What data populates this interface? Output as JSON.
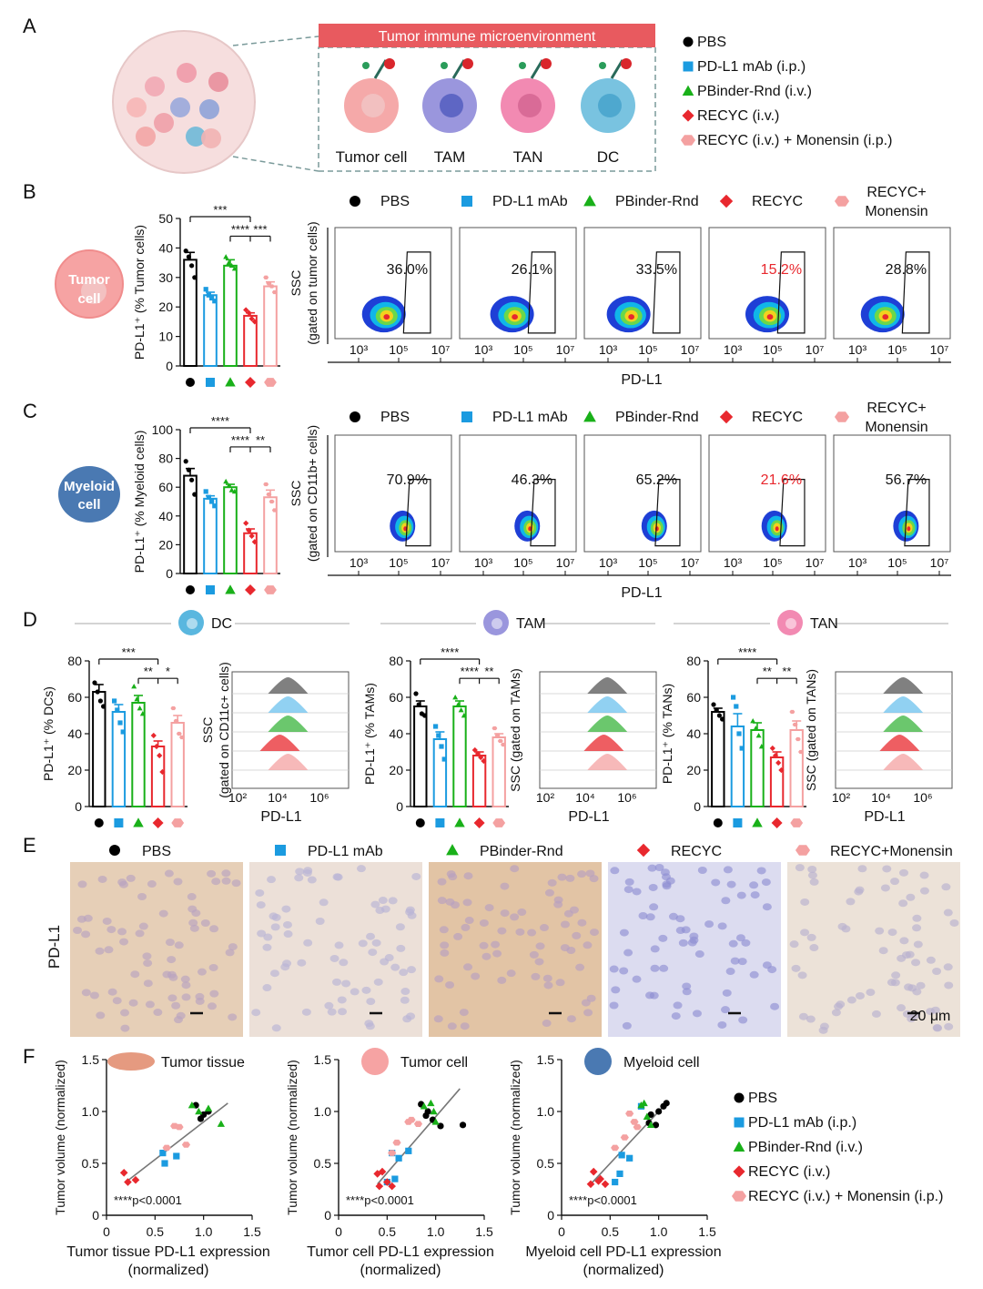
{
  "colors": {
    "pbs": "#000000",
    "mab": "#1b9be0",
    "pbinder": "#19b019",
    "recyc": "#e8282e",
    "mon": "#f4a1a1",
    "banner": "#e85a5f"
  },
  "groups": [
    "PBS",
    "PD-L1 mAb",
    "PBinder-Rnd",
    "RECYC",
    "RECYC+ Monensin"
  ],
  "panelA": {
    "label": "A",
    "banner": "Tumor immune microenvironment",
    "cells": [
      "Tumor cell",
      "TAM",
      "TAN",
      "DC"
    ],
    "legend": [
      "PBS",
      "PD-L1 mAb (i.p.)",
      "PBinder-Rnd (i.v.)",
      "RECYC (i.v.)",
      "RECYC (i.v.) + Monensin (i.p.)"
    ]
  },
  "panelB": {
    "label": "B",
    "cell_icon": "Tumor cell",
    "ylabel": "PD-L1⁺ (% Tumor cells)",
    "yticks": [
      "0",
      "10",
      "20",
      "30",
      "40",
      "50"
    ],
    "sig": [
      "***",
      "****",
      "***"
    ],
    "legend": [
      "PBS",
      "PD-L1 mAb",
      "PBinder-Rnd",
      "RECYC",
      "RECYC+",
      "Monensin"
    ],
    "flow_ylabel1": "SSC",
    "flow_ylabel2": "(gated on tumor cells)",
    "percents": [
      "36.0%",
      "26.1%",
      "33.5%",
      "15.2%",
      "28.8%"
    ],
    "xticks": [
      "10³",
      "10⁵",
      "10⁷"
    ],
    "xlabel": "PD-L1"
  },
  "panelC": {
    "label": "C",
    "cell_icon": "Myeloid cell",
    "ylabel": "PD-L1⁺ (% Myeloid cells)",
    "yticks": [
      "0",
      "20",
      "40",
      "60",
      "80",
      "100"
    ],
    "sig": [
      "****",
      "****",
      "**"
    ],
    "legend": [
      "PBS",
      "PD-L1 mAb",
      "PBinder-Rnd",
      "RECYC",
      "RECYC+",
      "Monensin"
    ],
    "flow_ylabel1": "SSC",
    "flow_ylabel2": "(gated on CD11b+ cells)",
    "percents": [
      "70.9%",
      "46.3%",
      "65.2%",
      "21.6%",
      "56.7%"
    ],
    "xticks": [
      "10³",
      "10⁵",
      "10⁷"
    ],
    "xlabel": "PD-L1"
  },
  "panelD": {
    "label": "D",
    "sections": [
      {
        "title": "DC",
        "ylabel": "PD-L1⁺ (% DCs)",
        "yticks": [
          "0",
          "20",
          "40",
          "60",
          "80"
        ],
        "sig": [
          "***",
          "**",
          "*"
        ],
        "hist_ylabel1": "SSC",
        "hist_ylabel2": "(gated on CD11c+ cells)",
        "hticks": [
          "10²",
          "10⁴",
          "10⁶"
        ],
        "xlabel": "PD-L1"
      },
      {
        "title": "TAM",
        "ylabel": "PD-L1⁺ (% TAMs)",
        "yticks": [
          "0",
          "20",
          "40",
          "60",
          "80"
        ],
        "sig": [
          "****",
          "****",
          "**"
        ],
        "hist_ylabel1": "SSC (gated on TAMs)",
        "hist_ylabel2": "",
        "hticks": [
          "10²",
          "10⁴",
          "10⁶"
        ],
        "xlabel": "PD-L1"
      },
      {
        "title": "TAN",
        "ylabel": "PD-L1⁺ (% TANs)",
        "yticks": [
          "0",
          "20",
          "40",
          "60",
          "80"
        ],
        "sig": [
          "****",
          "**",
          "**"
        ],
        "hist_ylabel1": "SSC (gated on TANs)",
        "hist_ylabel2": "",
        "hticks": [
          "10²",
          "10⁴",
          "10⁶"
        ],
        "xlabel": "PD-L1"
      }
    ]
  },
  "panelE": {
    "label": "E",
    "legend": [
      "PBS",
      "PD-L1 mAb",
      "PBinder-Rnd",
      "RECYC",
      "RECYC+Monensin"
    ],
    "row_label": "PD-L1",
    "scale": "20 μm"
  },
  "panelF": {
    "label": "F",
    "plots": [
      {
        "icon_label": "Tumor tissue",
        "xlabel1": "Tumor tissue PD-L1 expression",
        "xlabel2": "(normalized)"
      },
      {
        "icon_label": "Tumor cell",
        "xlabel1": "Tumor cell PD-L1 expression",
        "xlabel2": "(normalized)"
      },
      {
        "icon_label": "Myeloid cell",
        "xlabel1": "Myeloid cell PD-L1 expression",
        "xlabel2": "(normalized)"
      }
    ],
    "ylabel": "Tumor volume (normalized)",
    "xticks": [
      "0",
      "0.5",
      "1.0",
      "1.5"
    ],
    "yticks": [
      "0",
      "0.5",
      "1.0",
      "1.5"
    ],
    "pvalue": "****p<0.0001",
    "legend": [
      "PBS",
      "PD-L1 mAb (i.p.)",
      "PBinder-Rnd (i.v.)",
      "RECYC (i.v.)",
      "RECYC (i.v.) + Monensin (i.p.)"
    ]
  },
  "chart_data": [
    {
      "type": "bar",
      "title": "PD-L1+ tumor cells",
      "categories": [
        "PBS",
        "PD-L1 mAb",
        "PBinder-Rnd",
        "RECYC",
        "RECYC+Monensin"
      ],
      "values": [
        36,
        24,
        34,
        17,
        27
      ],
      "errors": [
        2.5,
        1,
        2,
        1,
        1.5
      ],
      "ylabel": "PD-L1+ (% Tumor cells)",
      "ylim": [
        0,
        50
      ],
      "points": [
        [
          39,
          37,
          34,
          30
        ],
        [
          26,
          24,
          23,
          22
        ],
        [
          37,
          35,
          34,
          33
        ],
        [
          19,
          18,
          16,
          15
        ],
        [
          30,
          28,
          27,
          25
        ]
      ]
    },
    {
      "type": "bar",
      "title": "PD-L1+ myeloid cells",
      "categories": [
        "PBS",
        "PD-L1 mAb",
        "PBinder-Rnd",
        "RECYC",
        "RECYC+Monensin"
      ],
      "values": [
        68,
        52,
        60,
        28,
        53
      ],
      "errors": [
        5,
        2,
        2,
        3,
        5
      ],
      "ylabel": "PD-L1+ (% Myeloid cells)",
      "ylim": [
        0,
        100
      ],
      "points": [
        [
          78,
          72,
          65,
          55
        ],
        [
          57,
          53,
          50,
          47
        ],
        [
          64,
          61,
          58,
          57
        ],
        [
          35,
          30,
          26,
          22
        ],
        [
          62,
          55,
          50,
          44
        ]
      ]
    },
    {
      "type": "bar",
      "title": "PD-L1+ DCs",
      "categories": [
        "PBS",
        "PD-L1 mAb",
        "PBinder-Rnd",
        "RECYC",
        "RECYC+Monensin"
      ],
      "values": [
        63,
        52,
        57,
        33,
        46
      ],
      "errors": [
        4,
        4,
        4,
        3,
        4
      ],
      "ylabel": "PD-L1+ (% DCs)",
      "ylim": [
        0,
        80
      ],
      "points": [
        [
          68,
          63,
          58,
          55
        ],
        [
          58,
          53,
          46,
          41
        ],
        [
          66,
          59,
          54,
          51
        ],
        [
          39,
          33,
          28,
          19
        ],
        [
          54,
          47,
          40,
          38
        ]
      ]
    },
    {
      "type": "bar",
      "title": "PD-L1+ TAMs",
      "categories": [
        "PBS",
        "PD-L1 mAb",
        "PBinder-Rnd",
        "RECYC",
        "RECYC+Monensin"
      ],
      "values": [
        55,
        37,
        55,
        28,
        38
      ],
      "errors": [
        3,
        4,
        3,
        2,
        2
      ],
      "ylabel": "PD-L1+ (% TAMs)",
      "ylim": [
        0,
        80
      ],
      "points": [
        [
          62,
          56,
          51,
          50
        ],
        [
          44,
          39,
          33,
          26
        ],
        [
          60,
          56,
          53,
          50
        ],
        [
          31,
          29,
          27,
          25
        ],
        [
          43,
          39,
          36,
          34
        ]
      ]
    },
    {
      "type": "bar",
      "title": "PD-L1+ TANs",
      "categories": [
        "PBS",
        "PD-L1 mAb",
        "PBinder-Rnd",
        "RECYC",
        "RECYC+Monensin"
      ],
      "values": [
        52,
        44,
        42,
        27,
        42
      ],
      "errors": [
        2,
        7,
        4,
        3,
        5
      ],
      "ylabel": "PD-L1+ (% TANs)",
      "ylim": [
        0,
        80
      ],
      "points": [
        [
          56,
          53,
          50,
          48
        ],
        [
          60,
          55,
          40,
          32
        ],
        [
          47,
          43,
          39,
          33
        ],
        [
          32,
          28,
          24,
          20
        ],
        [
          52,
          45,
          37,
          30
        ]
      ]
    },
    {
      "type": "scatter",
      "title": "Tumor tissue",
      "xlabel": "Tumor tissue PD-L1 expression (normalized)",
      "ylabel": "Tumor volume (normalized)",
      "xlim": [
        0,
        1.5
      ],
      "ylim": [
        0,
        1.5
      ],
      "fit": [
        [
          0.2,
          0.32
        ],
        [
          1.25,
          1.08
        ]
      ],
      "series": [
        {
          "name": "PBS",
          "x": [
            0.92,
            0.97,
            1.05,
            1.0
          ],
          "y": [
            1.06,
            0.93,
            1.0,
            0.97
          ]
        },
        {
          "name": "PD-L1 mAb",
          "x": [
            0.58,
            0.72,
            0.6
          ],
          "y": [
            0.6,
            0.57,
            0.5
          ]
        },
        {
          "name": "PBinder-Rnd",
          "x": [
            0.88,
            1.05,
            1.18,
            0.95
          ],
          "y": [
            1.06,
            1.03,
            0.88,
            1.0
          ]
        },
        {
          "name": "RECYC",
          "x": [
            0.18,
            0.22,
            0.3
          ],
          "y": [
            0.41,
            0.32,
            0.34
          ]
        },
        {
          "name": "RECYC+Monensin",
          "x": [
            0.7,
            0.75,
            0.82,
            0.62
          ],
          "y": [
            0.86,
            0.85,
            0.68,
            0.65
          ]
        }
      ]
    },
    {
      "type": "scatter",
      "title": "Tumor cell",
      "xlabel": "Tumor cell PD-L1 expression (normalized)",
      "ylabel": "Tumor volume (normalized)",
      "xlim": [
        0,
        1.5
      ],
      "ylim": [
        0,
        1.5
      ],
      "fit": [
        [
          0.4,
          0.3
        ],
        [
          1.25,
          1.22
        ]
      ],
      "series": [
        {
          "name": "PBS",
          "x": [
            0.85,
            0.92,
            0.97,
            1.05,
            1.28,
            0.9
          ],
          "y": [
            1.07,
            1.0,
            0.92,
            0.86,
            0.87,
            0.96
          ]
        },
        {
          "name": "PD-L1 mAb",
          "x": [
            0.55,
            0.62,
            0.72,
            0.58,
            0.5
          ],
          "y": [
            0.6,
            0.55,
            0.62,
            0.35,
            0.32
          ]
        },
        {
          "name": "PBinder-Rnd",
          "x": [
            0.88,
            0.95,
            0.98,
            1.0
          ],
          "y": [
            1.05,
            1.08,
            1.0,
            0.9
          ]
        },
        {
          "name": "RECYC",
          "x": [
            0.4,
            0.45,
            0.5,
            0.42,
            0.55
          ],
          "y": [
            0.4,
            0.42,
            0.32,
            0.28,
            0.28
          ]
        },
        {
          "name": "RECYC+Monensin",
          "x": [
            0.6,
            0.72,
            0.75,
            0.55,
            0.82
          ],
          "y": [
            0.7,
            0.9,
            0.92,
            0.6,
            0.88
          ]
        }
      ]
    },
    {
      "type": "scatter",
      "title": "Myeloid cell",
      "xlabel": "Myeloid cell PD-L1 expression (normalized)",
      "ylabel": "Tumor volume (normalized)",
      "xlim": [
        0,
        1.5
      ],
      "ylim": [
        0,
        1.5
      ],
      "fit": [
        [
          0.3,
          0.3
        ],
        [
          1.05,
          1.05
        ]
      ],
      "series": [
        {
          "name": "PBS",
          "x": [
            0.92,
            1.0,
            1.05,
            1.08,
            0.97,
            0.9
          ],
          "y": [
            0.97,
            1.0,
            1.05,
            1.08,
            0.87,
            0.89
          ]
        },
        {
          "name": "PD-L1 mAb",
          "x": [
            0.82,
            0.62,
            0.7,
            0.55,
            0.6
          ],
          "y": [
            1.05,
            0.58,
            0.55,
            0.32,
            0.4
          ]
        },
        {
          "name": "PBinder-Rnd",
          "x": [
            0.82,
            0.85,
            0.88,
            0.92
          ],
          "y": [
            1.06,
            1.08,
            0.95,
            0.87
          ]
        },
        {
          "name": "RECYC",
          "x": [
            0.33,
            0.4,
            0.45,
            0.3,
            0.38
          ],
          "y": [
            0.42,
            0.35,
            0.3,
            0.3,
            0.33
          ]
        },
        {
          "name": "RECYC+Monensin",
          "x": [
            0.7,
            0.75,
            0.78,
            0.65,
            0.55
          ],
          "y": [
            0.98,
            0.9,
            0.85,
            0.75,
            0.65
          ]
        }
      ]
    }
  ]
}
